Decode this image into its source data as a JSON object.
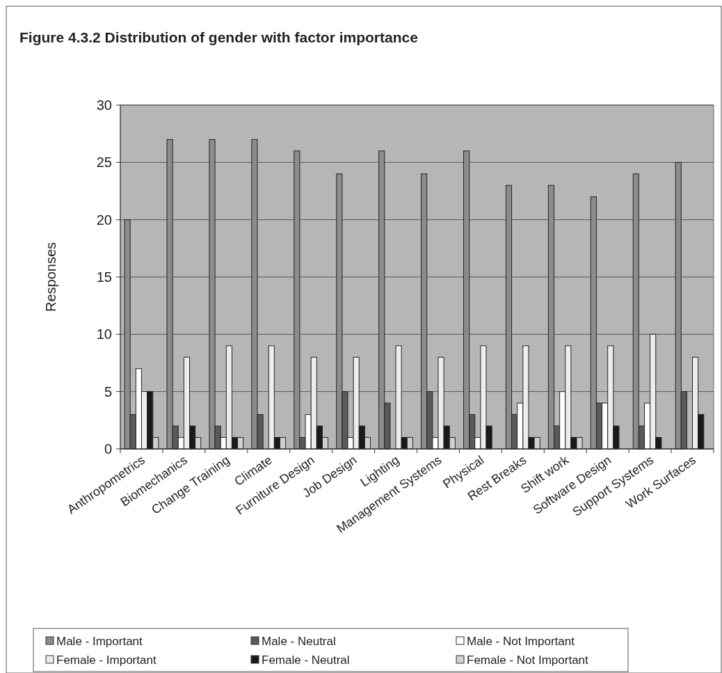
{
  "chart_data": {
    "type": "bar",
    "title": "Figure 4.3.2 Distribution of gender with factor importance",
    "ylabel": "Responses",
    "categories": [
      "Anthropometrics",
      "Biomechanics",
      "Change Training",
      "Climate",
      "Furniture Design",
      "Job Design",
      "Lighting",
      "Management Systems",
      "Physical",
      "Rest Breaks",
      "Shift work",
      "Software Design",
      "Support Systems",
      "Work Surfaces"
    ],
    "series": [
      {
        "name": "Male - Important",
        "color": "#8c8c8c",
        "values": [
          20,
          27,
          27,
          27,
          26,
          24,
          26,
          24,
          26,
          23,
          23,
          22,
          24,
          25
        ]
      },
      {
        "name": "Male - Neutral",
        "color": "#5a5a5a",
        "values": [
          3,
          2,
          2,
          3,
          1,
          5,
          4,
          5,
          3,
          3,
          2,
          4,
          2,
          5
        ]
      },
      {
        "name": "Male - Not Important",
        "color": "#ffffff",
        "values": [
          7,
          1,
          1,
          0,
          3,
          1,
          0,
          1,
          1,
          4,
          5,
          4,
          4,
          0
        ]
      },
      {
        "name": "Female - Important",
        "color": "#ededed",
        "values": [
          5,
          8,
          9,
          9,
          8,
          8,
          9,
          8,
          9,
          9,
          9,
          9,
          10,
          8
        ]
      },
      {
        "name": "Female - Neutral",
        "color": "#1a1a1a",
        "values": [
          5,
          2,
          1,
          1,
          2,
          2,
          1,
          2,
          2,
          1,
          1,
          2,
          1,
          3
        ]
      },
      {
        "name": "Female - Not Important",
        "color": "#d0d0d0",
        "values": [
          1,
          1,
          1,
          1,
          1,
          1,
          1,
          1,
          0,
          1,
          1,
          0,
          0,
          0
        ]
      }
    ],
    "ylim": [
      0,
      30
    ],
    "yticks": [
      0,
      5,
      10,
      15,
      20,
      25,
      30
    ],
    "grid": "y",
    "legend": "bottom"
  }
}
